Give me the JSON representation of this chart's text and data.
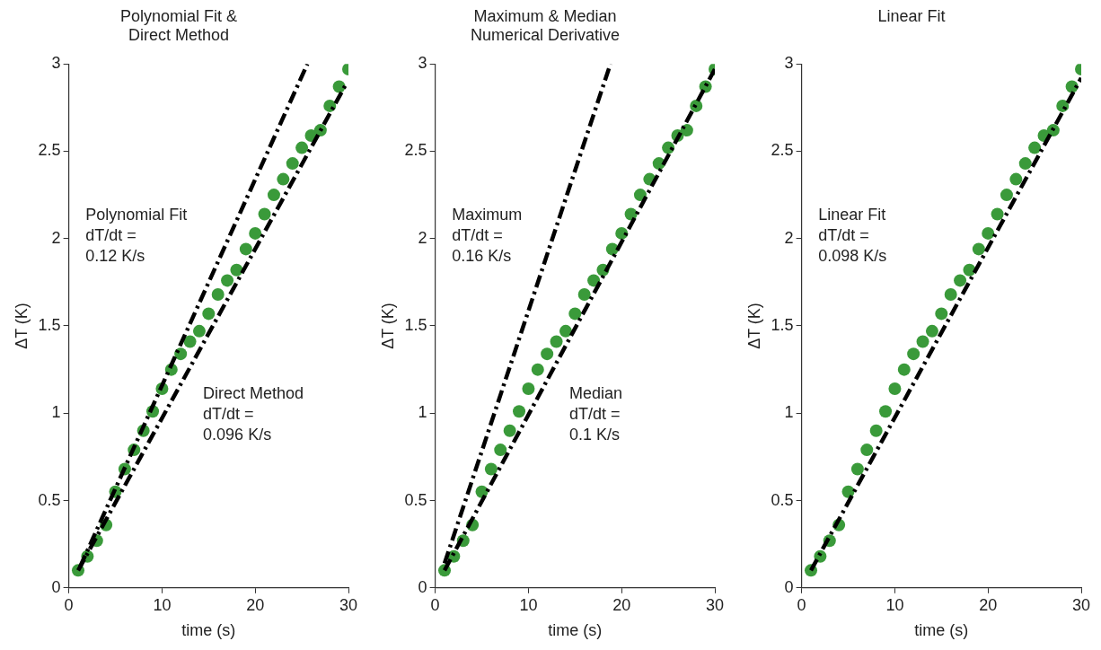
{
  "chart_data": [
    {
      "type": "scatter",
      "title": "Polynomial Fit &\nDirect Method",
      "xlabel": "time (s)",
      "ylabel": "ΔT (K)",
      "x": [
        1,
        2,
        3,
        4,
        5,
        6,
        7,
        8,
        9,
        10,
        11,
        12,
        13,
        14,
        15,
        16,
        17,
        18,
        19,
        20,
        21,
        22,
        23,
        24,
        25,
        26,
        27,
        28,
        29,
        30
      ],
      "series": [
        {
          "type": "scatter",
          "color": "#3a9a3a",
          "marker": "circle",
          "values": [
            0.1,
            0.18,
            0.27,
            0.36,
            0.55,
            0.68,
            0.79,
            0.9,
            1.01,
            1.14,
            1.25,
            1.34,
            1.41,
            1.47,
            1.57,
            1.68,
            1.76,
            1.82,
            1.94,
            2.03,
            2.14,
            2.25,
            2.34,
            2.43,
            2.52,
            2.59,
            2.62,
            2.76,
            2.87,
            2.97
          ]
        },
        {
          "type": "line",
          "color": "#000000",
          "line_style": "dashed",
          "x": [
            1.2,
            25.6
          ],
          "values": [
            0.12,
            3.0
          ]
        },
        {
          "type": "line",
          "color": "#000000",
          "line_style": "dashed",
          "x": [
            1,
            29.7
          ],
          "values": [
            0.1,
            2.88
          ]
        }
      ],
      "annotations": [
        "Polynomial Fit\ndT/dt =\n0.12 K/s",
        "Direct Method\ndT/dt =\n0.096 K/s"
      ],
      "xlim": [
        0,
        30
      ],
      "xticks": [
        0,
        10,
        20,
        30
      ],
      "ylim": [
        0,
        3
      ],
      "yticks": [
        0,
        0.5,
        1,
        1.5,
        2,
        2.5,
        3
      ],
      "legend": false,
      "grid": false
    },
    {
      "type": "scatter",
      "title": "Maximum & Median\nNumerical Derivative",
      "xlabel": "time (s)",
      "ylabel": "ΔT (K)",
      "x": [
        1,
        2,
        3,
        4,
        5,
        6,
        7,
        8,
        9,
        10,
        11,
        12,
        13,
        14,
        15,
        16,
        17,
        18,
        19,
        20,
        21,
        22,
        23,
        24,
        25,
        26,
        27,
        28,
        29,
        30
      ],
      "series": [
        {
          "type": "scatter",
          "color": "#3a9a3a",
          "marker": "circle",
          "values": [
            0.1,
            0.18,
            0.27,
            0.36,
            0.55,
            0.68,
            0.79,
            0.9,
            1.01,
            1.14,
            1.25,
            1.34,
            1.41,
            1.47,
            1.57,
            1.68,
            1.76,
            1.82,
            1.94,
            2.03,
            2.14,
            2.25,
            2.34,
            2.43,
            2.52,
            2.59,
            2.62,
            2.76,
            2.87,
            2.97
          ]
        },
        {
          "type": "line",
          "color": "#000000",
          "line_style": "dashed",
          "x": [
            1,
            18.8
          ],
          "values": [
            0.14,
            3.0
          ]
        },
        {
          "type": "line",
          "color": "#000000",
          "line_style": "dashed",
          "x": [
            1,
            30
          ],
          "values": [
            0.1,
            2.97
          ]
        }
      ],
      "annotations": [
        "Maximum\ndT/dt =\n0.16 K/s",
        "Median\ndT/dt =\n0.1 K/s"
      ],
      "xlim": [
        0,
        30
      ],
      "xticks": [
        0,
        10,
        20,
        30
      ],
      "ylim": [
        0,
        3
      ],
      "yticks": [
        0,
        0.5,
        1,
        1.5,
        2,
        2.5,
        3
      ],
      "legend": false,
      "grid": false
    },
    {
      "type": "scatter",
      "title": "Linear Fit",
      "xlabel": "time (s)",
      "ylabel": "ΔT (K)",
      "x": [
        1,
        2,
        3,
        4,
        5,
        6,
        7,
        8,
        9,
        10,
        11,
        12,
        13,
        14,
        15,
        16,
        17,
        18,
        19,
        20,
        21,
        22,
        23,
        24,
        25,
        26,
        27,
        28,
        29,
        30
      ],
      "series": [
        {
          "type": "scatter",
          "color": "#3a9a3a",
          "marker": "circle",
          "values": [
            0.1,
            0.18,
            0.27,
            0.36,
            0.55,
            0.68,
            0.79,
            0.9,
            1.01,
            1.14,
            1.25,
            1.34,
            1.41,
            1.47,
            1.57,
            1.68,
            1.76,
            1.82,
            1.94,
            2.03,
            2.14,
            2.25,
            2.34,
            2.43,
            2.52,
            2.59,
            2.62,
            2.76,
            2.87,
            2.97
          ]
        },
        {
          "type": "line",
          "color": "#000000",
          "line_style": "dashed",
          "x": [
            1,
            30
          ],
          "values": [
            0.1,
            2.92
          ]
        }
      ],
      "annotations": [
        "Linear Fit\ndT/dt =\n0.098 K/s"
      ],
      "xlim": [
        0,
        30
      ],
      "xticks": [
        0,
        10,
        20,
        30
      ],
      "ylim": [
        0,
        3
      ],
      "yticks": [
        0,
        0.5,
        1,
        1.5,
        2,
        2.5,
        3
      ],
      "legend": false,
      "grid": false
    }
  ]
}
